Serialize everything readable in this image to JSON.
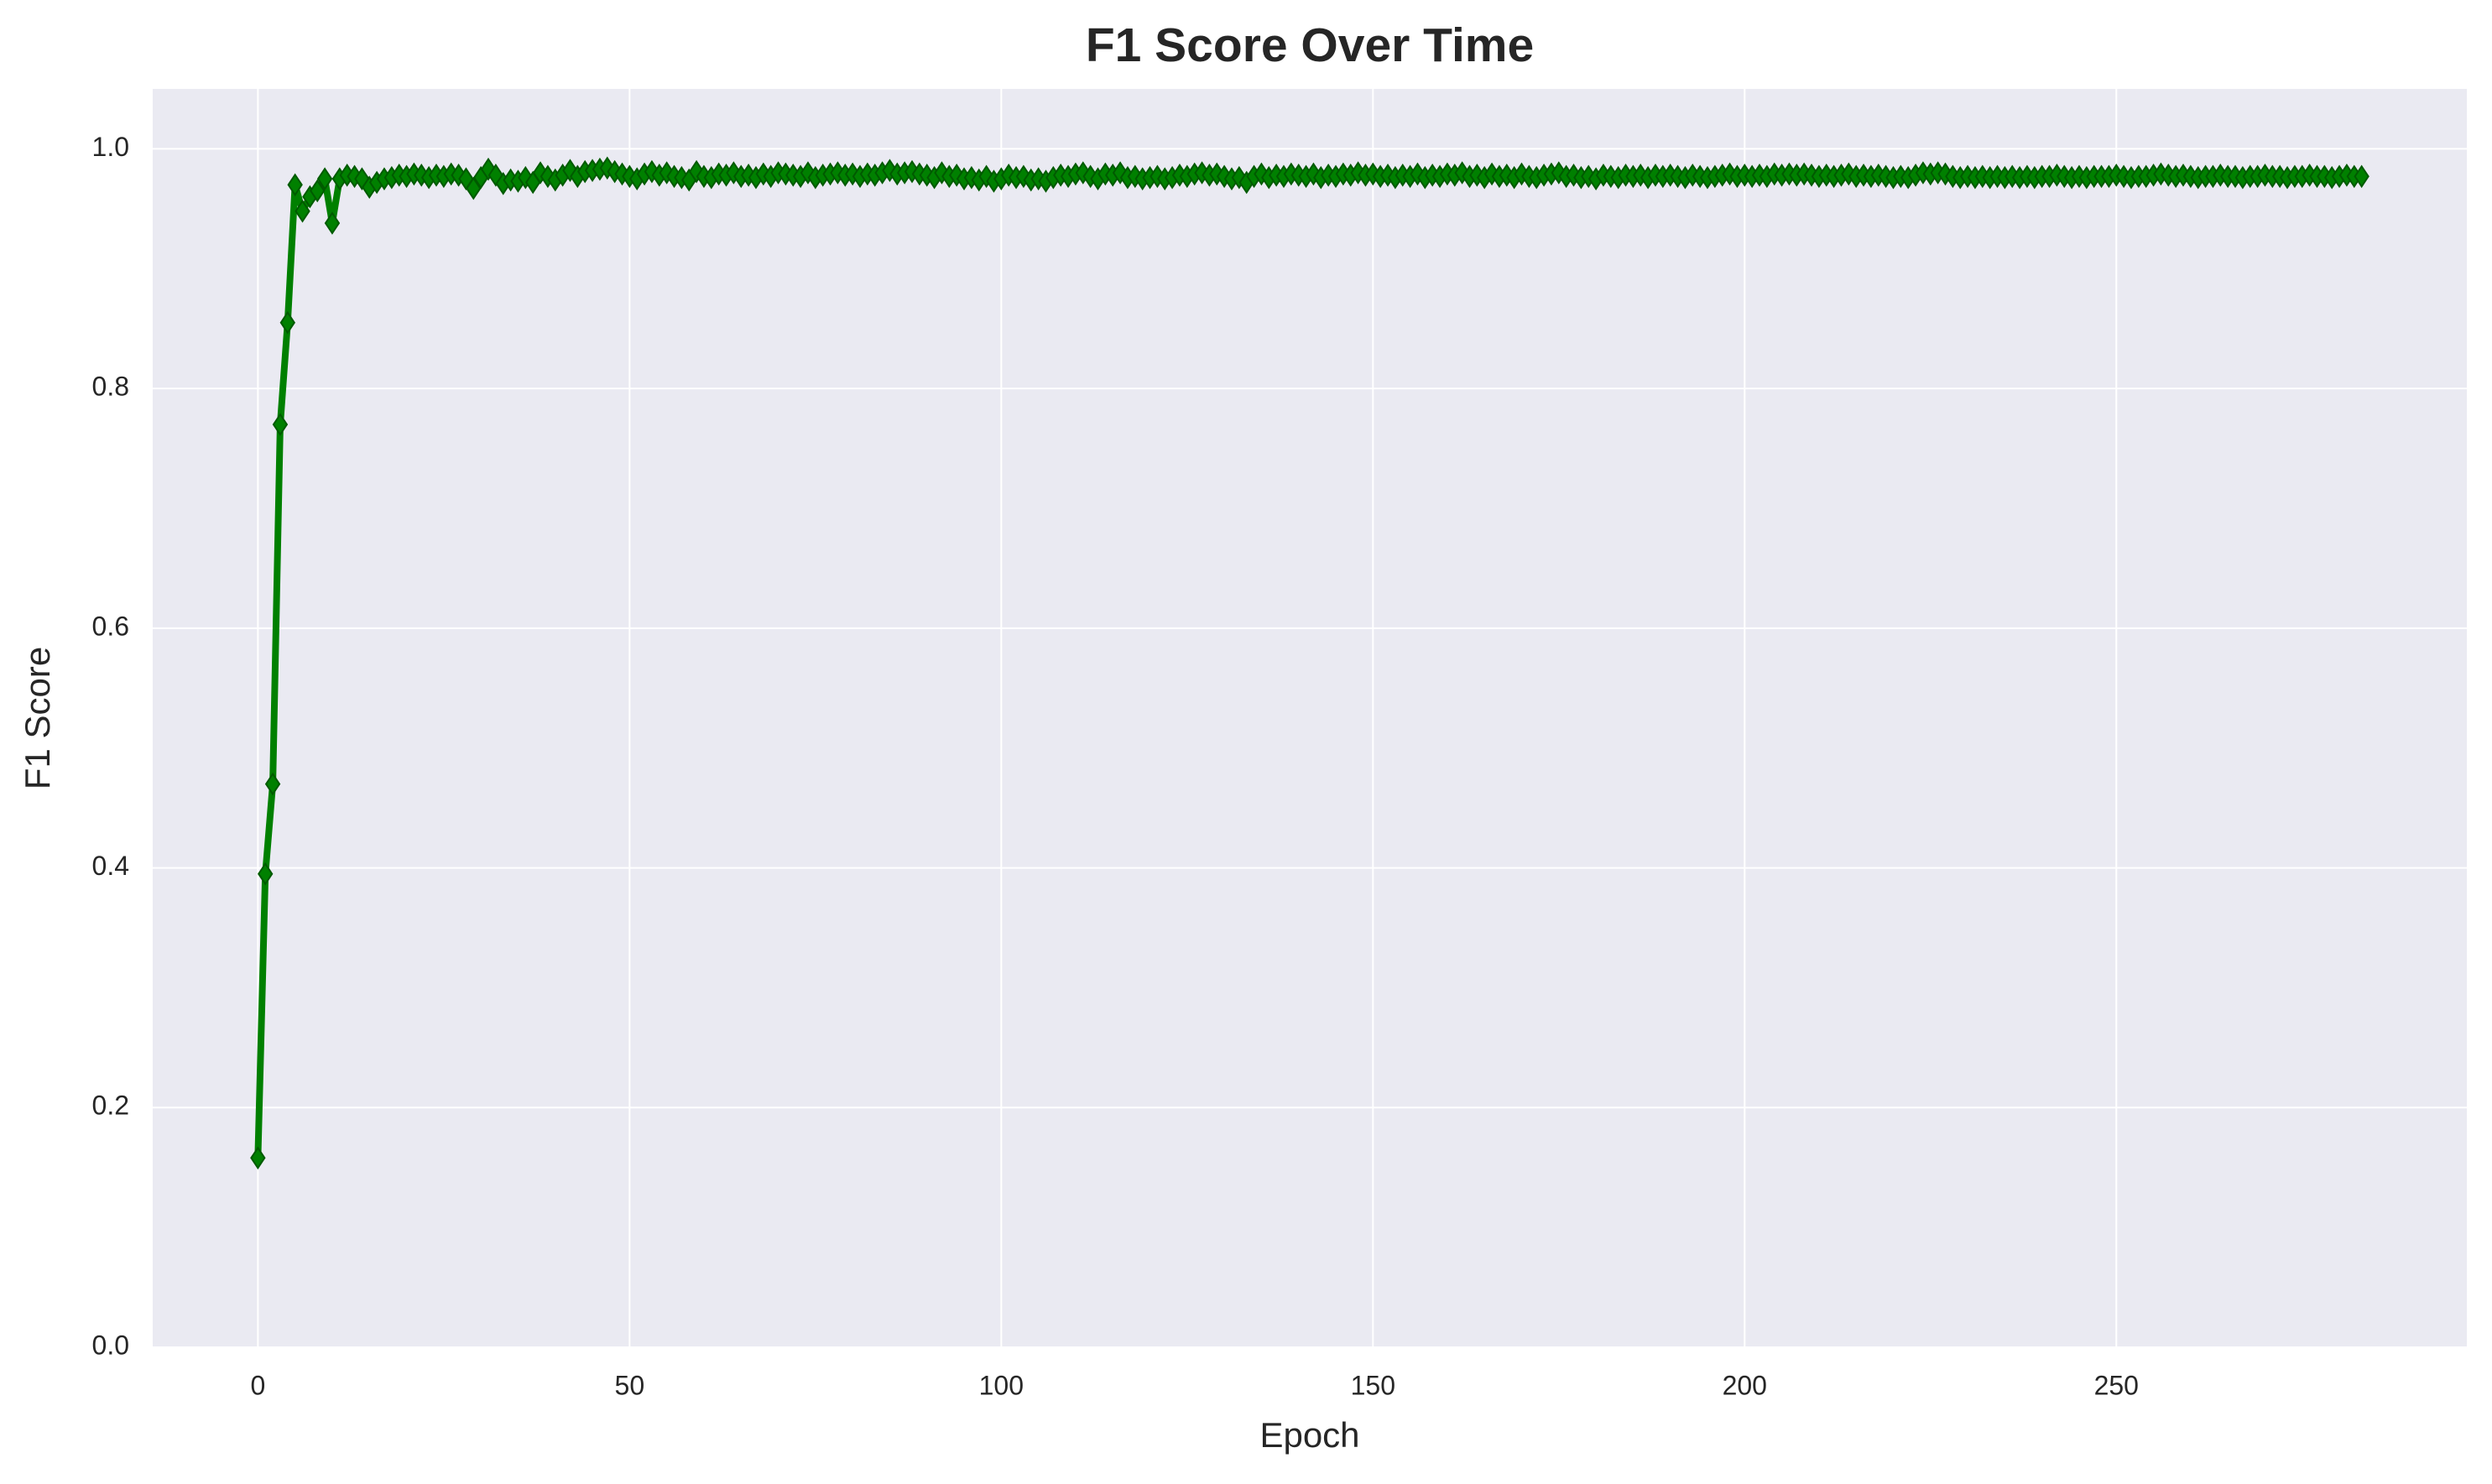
{
  "chart_data": {
    "type": "line",
    "title": "F1 Score Over Time",
    "xlabel": "Epoch",
    "ylabel": "F1 Score",
    "x": [
      0,
      1,
      2,
      3,
      4,
      5,
      6,
      7,
      8,
      9,
      10,
      11,
      12,
      13,
      14,
      15,
      16,
      17,
      18,
      19,
      20,
      21,
      22,
      23,
      24,
      25,
      26,
      27,
      28,
      29,
      30,
      31,
      32,
      33,
      34,
      35,
      36,
      37,
      38,
      39,
      40,
      41,
      42,
      43,
      44,
      45,
      46,
      47,
      48,
      49,
      50,
      51,
      52,
      53,
      54,
      55,
      56,
      57,
      58,
      59,
      60,
      61,
      62,
      63,
      64,
      65,
      66,
      67,
      68,
      69,
      70,
      71,
      72,
      73,
      74,
      75,
      76,
      77,
      78,
      79,
      80,
      81,
      82,
      83,
      84,
      85,
      86,
      87,
      88,
      89,
      90,
      91,
      92,
      93,
      94,
      95,
      96,
      97,
      98,
      99,
      100,
      101,
      102,
      103,
      104,
      105,
      106,
      107,
      108,
      109,
      110,
      111,
      112,
      113,
      114,
      115,
      116,
      117,
      118,
      119,
      120,
      121,
      122,
      123,
      124,
      125,
      126,
      127,
      128,
      129,
      130,
      131,
      132,
      133,
      134,
      135,
      136,
      137,
      138,
      139,
      140,
      141,
      142,
      143,
      144,
      145,
      146,
      147,
      148,
      149,
      150,
      151,
      152,
      153,
      154,
      155,
      156,
      157,
      158,
      159,
      160,
      161,
      162,
      163,
      164,
      165,
      166,
      167,
      168,
      169,
      170,
      171,
      172,
      173,
      174,
      175,
      176,
      177,
      178,
      179,
      180,
      181,
      182,
      183,
      184,
      185,
      186,
      187,
      188,
      189,
      190,
      191,
      192,
      193,
      194,
      195,
      196,
      197,
      198,
      199,
      200,
      201,
      202,
      203,
      204,
      205,
      206,
      207,
      208,
      209,
      210,
      211,
      212,
      213,
      214,
      215,
      216,
      217,
      218,
      219,
      220,
      221,
      222,
      223,
      224,
      225,
      226,
      227,
      228,
      229,
      230,
      231,
      232,
      233,
      234,
      235,
      236,
      237,
      238,
      239,
      240,
      241,
      242,
      243,
      244,
      245,
      246,
      247,
      248,
      249,
      250,
      251,
      252,
      253,
      254,
      255,
      256,
      257,
      258,
      259,
      260,
      261,
      262,
      263,
      264,
      265,
      266,
      267,
      268,
      269,
      270,
      271,
      272,
      273,
      274,
      275,
      276,
      277,
      278,
      279,
      280,
      281,
      282,
      283
    ],
    "series": [
      {
        "name": "F1 Score",
        "color": "#008000",
        "values": [
          0.158,
          0.395,
          0.47,
          0.77,
          0.855,
          0.97,
          0.948,
          0.96,
          0.965,
          0.975,
          0.938,
          0.975,
          0.978,
          0.977,
          0.975,
          0.968,
          0.972,
          0.975,
          0.976,
          0.978,
          0.977,
          0.979,
          0.978,
          0.976,
          0.978,
          0.977,
          0.979,
          0.978,
          0.975,
          0.967,
          0.976,
          0.983,
          0.978,
          0.971,
          0.974,
          0.973,
          0.976,
          0.972,
          0.98,
          0.977,
          0.974,
          0.978,
          0.982,
          0.977,
          0.981,
          0.982,
          0.983,
          0.984,
          0.981,
          0.979,
          0.977,
          0.975,
          0.979,
          0.981,
          0.978,
          0.98,
          0.977,
          0.976,
          0.974,
          0.981,
          0.977,
          0.976,
          0.979,
          0.978,
          0.98,
          0.977,
          0.978,
          0.976,
          0.979,
          0.977,
          0.98,
          0.979,
          0.978,
          0.977,
          0.98,
          0.976,
          0.978,
          0.979,
          0.98,
          0.978,
          0.979,
          0.977,
          0.979,
          0.978,
          0.98,
          0.982,
          0.979,
          0.98,
          0.981,
          0.979,
          0.978,
          0.976,
          0.98,
          0.977,
          0.978,
          0.975,
          0.976,
          0.974,
          0.977,
          0.973,
          0.975,
          0.978,
          0.976,
          0.977,
          0.974,
          0.975,
          0.973,
          0.976,
          0.978,
          0.977,
          0.979,
          0.98,
          0.977,
          0.975,
          0.979,
          0.978,
          0.98,
          0.976,
          0.977,
          0.975,
          0.976,
          0.977,
          0.975,
          0.976,
          0.978,
          0.977,
          0.979,
          0.98,
          0.978,
          0.979,
          0.977,
          0.975,
          0.976,
          0.972,
          0.977,
          0.979,
          0.976,
          0.978,
          0.977,
          0.979,
          0.978,
          0.977,
          0.979,
          0.976,
          0.978,
          0.977,
          0.979,
          0.978,
          0.98,
          0.978,
          0.979,
          0.977,
          0.978,
          0.976,
          0.978,
          0.977,
          0.979,
          0.976,
          0.978,
          0.977,
          0.979,
          0.978,
          0.98,
          0.977,
          0.978,
          0.976,
          0.979,
          0.977,
          0.978,
          0.976,
          0.979,
          0.977,
          0.976,
          0.978,
          0.979,
          0.98,
          0.977,
          0.978,
          0.976,
          0.977,
          0.975,
          0.978,
          0.977,
          0.976,
          0.978,
          0.977,
          0.978,
          0.976,
          0.978,
          0.977,
          0.978,
          0.977,
          0.976,
          0.978,
          0.977,
          0.976,
          0.977,
          0.978,
          0.979,
          0.977,
          0.978,
          0.977,
          0.978,
          0.977,
          0.979,
          0.978,
          0.979,
          0.978,
          0.979,
          0.978,
          0.977,
          0.978,
          0.977,
          0.978,
          0.979,
          0.977,
          0.978,
          0.977,
          0.978,
          0.977,
          0.976,
          0.977,
          0.976,
          0.978,
          0.98,
          0.979,
          0.98,
          0.979,
          0.977,
          0.976,
          0.977,
          0.976,
          0.977,
          0.976,
          0.977,
          0.976,
          0.977,
          0.976,
          0.977,
          0.976,
          0.977,
          0.977,
          0.978,
          0.977,
          0.976,
          0.977,
          0.976,
          0.977,
          0.977,
          0.977,
          0.978,
          0.977,
          0.976,
          0.977,
          0.977,
          0.978,
          0.979,
          0.978,
          0.977,
          0.978,
          0.977,
          0.976,
          0.977,
          0.977,
          0.978,
          0.977,
          0.977,
          0.976,
          0.977,
          0.977,
          0.978,
          0.977,
          0.977,
          0.976,
          0.977,
          0.977,
          0.978,
          0.977,
          0.977,
          0.976,
          0.977,
          0.978,
          0.977,
          0.977
        ]
      }
    ],
    "xlim": [
      -14.15,
      297.15
    ],
    "xticks": [
      0,
      50,
      100,
      150,
      200,
      250
    ],
    "ylim": [
      0,
      1.05
    ],
    "yticks": [
      {
        "value": 0,
        "label": "0.0"
      },
      0.2,
      0.4,
      0.6,
      0.8,
      {
        "value": 1,
        "label": "1.0"
      }
    ],
    "grid": true,
    "marker": "diamond"
  }
}
